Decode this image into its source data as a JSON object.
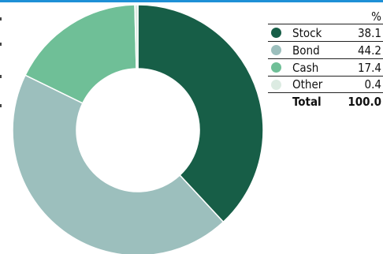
{
  "chart_data": {
    "type": "pie",
    "variant": "donut",
    "unit_header": "%",
    "categories": [
      "Stock",
      "Bond",
      "Cash",
      "Other"
    ],
    "values": [
      38.1,
      44.2,
      17.4,
      0.4
    ],
    "colors": [
      "#175e47",
      "#9cbfbd",
      "#6fbf97",
      "#dcebe2"
    ],
    "total_label": "Total",
    "total_value": "100.0",
    "legend_position": "right",
    "legend": [
      {
        "label": "Stock",
        "value": "38.1"
      },
      {
        "label": "Bond",
        "value": "44.2"
      },
      {
        "label": "Cash",
        "value": "17.4"
      },
      {
        "label": "Other",
        "value": "0.4"
      }
    ]
  },
  "colors": {
    "top_bar": "#1e90d6"
  }
}
